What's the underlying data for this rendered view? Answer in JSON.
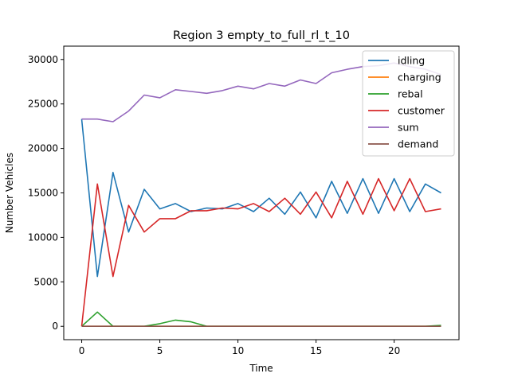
{
  "chart_data": {
    "type": "line",
    "title": "Region 3 empty_to_full_rl_t_10",
    "xlabel": "Time",
    "ylabel": "Number Vehicles",
    "xlim": [
      -1.15,
      24.15
    ],
    "ylim": [
      -1500,
      31500
    ],
    "xticks": [
      0,
      5,
      10,
      15,
      20
    ],
    "xtick_labels": [
      "0",
      "5",
      "10",
      "15",
      "20"
    ],
    "yticks": [
      0,
      5000,
      10000,
      15000,
      20000,
      25000,
      30000
    ],
    "ytick_labels": [
      "0",
      "5000",
      "10000",
      "15000",
      "20000",
      "25000",
      "30000"
    ],
    "grid": false,
    "legend_position": "top-right",
    "x": [
      0,
      1,
      2,
      3,
      4,
      5,
      6,
      7,
      8,
      9,
      10,
      11,
      12,
      13,
      14,
      15,
      16,
      17,
      18,
      19,
      20,
      21,
      22,
      23
    ],
    "series": [
      {
        "name": "idling",
        "color": "#1f77b4",
        "values": [
          23300,
          5600,
          17300,
          10600,
          15400,
          13200,
          13800,
          12900,
          13300,
          13200,
          13800,
          12900,
          14400,
          12600,
          15100,
          12200,
          16300,
          12700,
          16600,
          12700,
          16600,
          12900,
          16000,
          15000
        ]
      },
      {
        "name": "charging",
        "color": "#ff7f0e",
        "values": [
          0,
          0,
          0,
          0,
          0,
          0,
          0,
          0,
          0,
          0,
          0,
          0,
          0,
          0,
          0,
          0,
          0,
          0,
          0,
          0,
          0,
          0,
          0,
          0
        ]
      },
      {
        "name": "rebal",
        "color": "#2ca02c",
        "values": [
          0,
          1600,
          0,
          0,
          0,
          300,
          700,
          500,
          0,
          0,
          0,
          0,
          0,
          0,
          0,
          0,
          0,
          0,
          0,
          0,
          0,
          0,
          0,
          100
        ]
      },
      {
        "name": "customer",
        "color": "#d62728",
        "values": [
          0,
          16000,
          5600,
          13600,
          10600,
          12100,
          12100,
          13000,
          13000,
          13300,
          13200,
          13800,
          12900,
          14400,
          12600,
          15100,
          12200,
          16300,
          12600,
          16600,
          13000,
          16600,
          12900,
          13200
        ]
      },
      {
        "name": "sum",
        "color": "#9467bd",
        "values": [
          23300,
          23300,
          23000,
          24200,
          26000,
          25700,
          26600,
          26400,
          26200,
          26500,
          27000,
          26700,
          27300,
          27000,
          27700,
          27300,
          28500,
          28900,
          29200,
          29300,
          29600,
          29200,
          28900,
          28300
        ]
      },
      {
        "name": "demand",
        "color": "#8c564b",
        "values": [
          0,
          0,
          0,
          0,
          0,
          0,
          0,
          0,
          0,
          0,
          0,
          0,
          0,
          0,
          0,
          0,
          0,
          0,
          0,
          0,
          0,
          0,
          0,
          0
        ]
      }
    ]
  }
}
